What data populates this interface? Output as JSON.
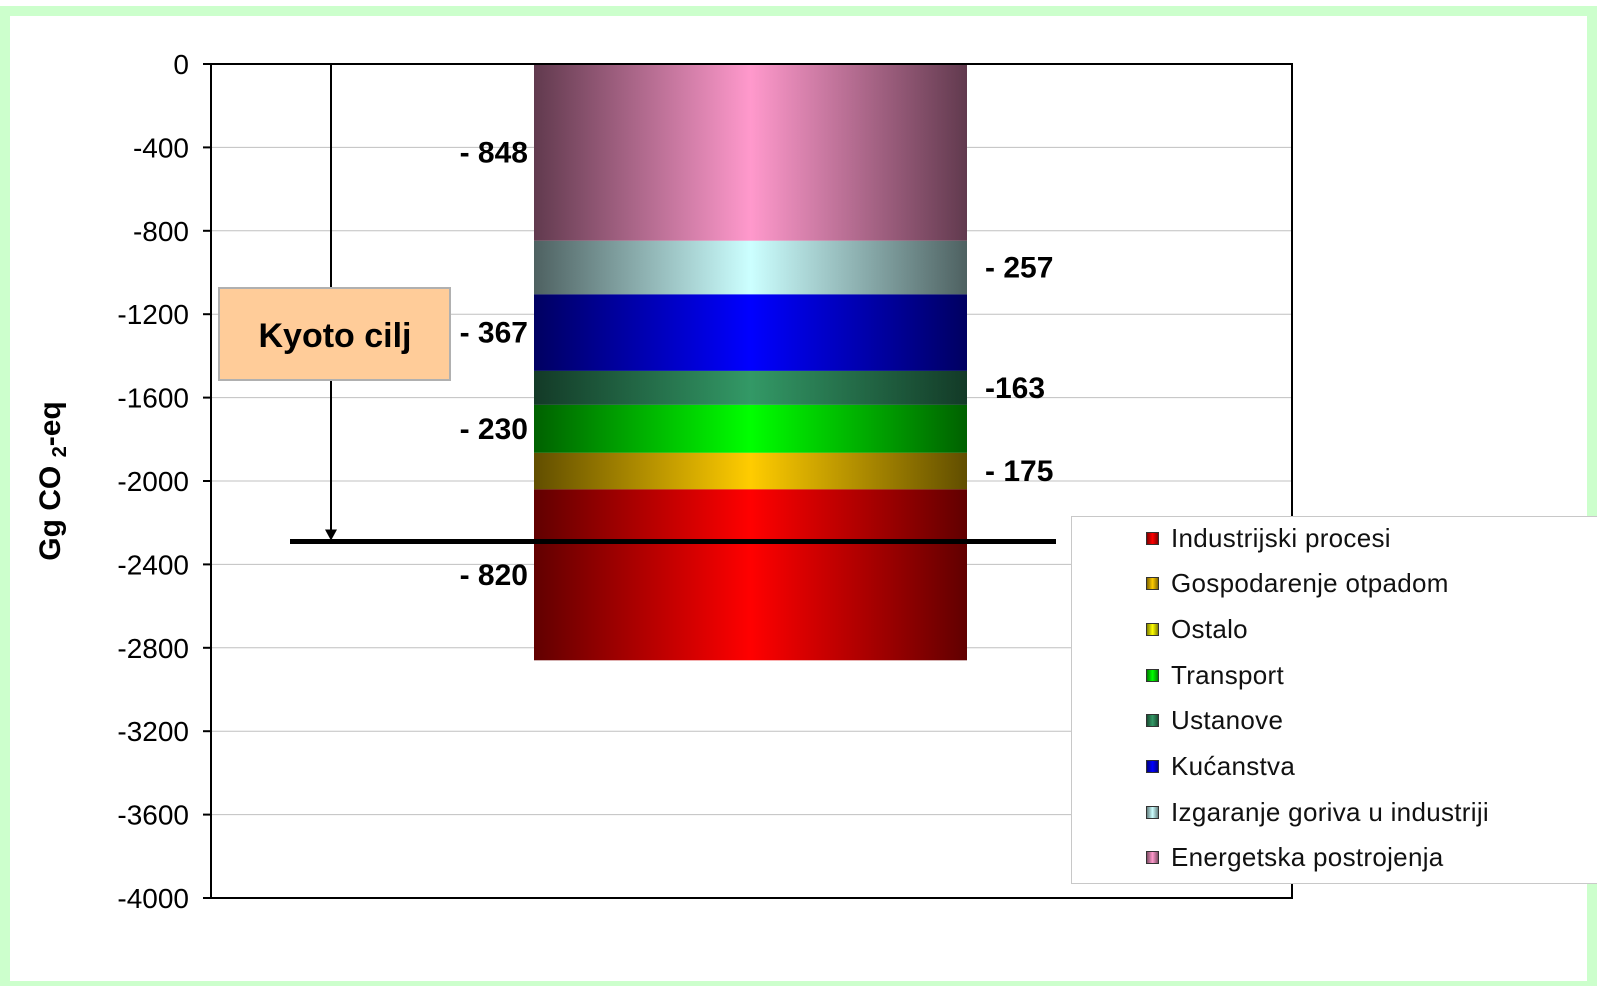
{
  "chart_data": {
    "type": "bar",
    "stacked": true,
    "categories": [
      ""
    ],
    "ylabel": "Gg CO 2-eq",
    "ylim": [
      -4000,
      0
    ],
    "yticks": [
      0,
      -400,
      -800,
      -1200,
      -1600,
      -2000,
      -2400,
      -2800,
      -3200,
      -3600,
      -4000
    ],
    "grid": true,
    "legend_position": "bottom-right",
    "series": [
      {
        "name": "Energetska postrojenja",
        "value": -848,
        "label": "- 848",
        "label_side": "left",
        "color": "#ff99cc"
      },
      {
        "name": "Izgaranje goriva u industriji",
        "value": -257,
        "label": "- 257",
        "label_side": "right",
        "color": "#ccffff"
      },
      {
        "name": "Kućanstva",
        "value": -367,
        "label": "- 367",
        "label_side": "left",
        "color": "#0000ff"
      },
      {
        "name": "Ustanove",
        "value": -163,
        "label": "-163",
        "label_side": "right",
        "color": "#339966"
      },
      {
        "name": "Transport",
        "value": -230,
        "label": "- 230",
        "label_side": "left",
        "color": "#00ff00"
      },
      {
        "name": "Gospodarenje otpadom",
        "value": -175,
        "label": "- 175",
        "label_side": "right",
        "color": "#ffcc00"
      },
      {
        "name": "Industrijski procesi",
        "value": -820,
        "label": "- 820",
        "label_side": "left",
        "color": "#ff0000"
      }
    ],
    "legend": [
      {
        "label": "Industrijski procesi",
        "color": "#ff0000"
      },
      {
        "label": "Gospodarenje otpadom",
        "color": "#ffcc00"
      },
      {
        "label": "Ostalo",
        "color": "#ffff00"
      },
      {
        "label": "Transport",
        "color": "#00ff00"
      },
      {
        "label": "Ustanove",
        "color": "#339966"
      },
      {
        "label": "Kućanstva",
        "color": "#0000ff"
      },
      {
        "label": "Izgaranje goriva u industriji",
        "color": "#ccffff"
      },
      {
        "label": "Energetska postrojenja",
        "color": "#ff99cc"
      }
    ],
    "annotations": [
      {
        "text": "Kyoto cilj",
        "target_value": -2290
      }
    ]
  },
  "colors": {
    "frame_border": "#ccffcc",
    "plot_border": "#000000",
    "gridline": "#c0c0c0",
    "annotation_box": "#ffcc99"
  }
}
